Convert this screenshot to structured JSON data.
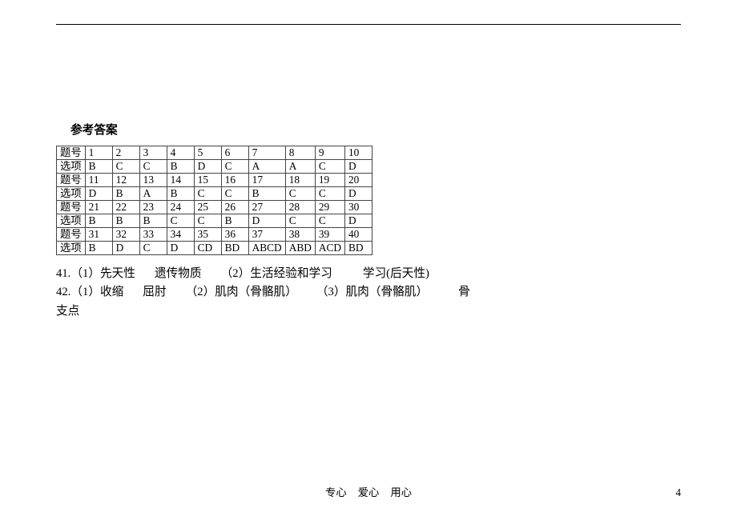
{
  "font_size_pt": 11,
  "table_font_size_pt": 10,
  "heading": "参考答案",
  "row_label_q": "题号",
  "row_label_a": "选项",
  "table_rows": [
    {
      "label": "题号",
      "vals": [
        "1",
        "2",
        "3",
        "4",
        "5",
        "6",
        "7",
        "8",
        "9",
        "10"
      ]
    },
    {
      "label": "选项",
      "vals": [
        "B",
        "C",
        "C",
        "B",
        "D",
        "C",
        "A",
        "A",
        "C",
        "D"
      ]
    },
    {
      "label": "题号",
      "vals": [
        "11",
        "12",
        "13",
        "14",
        "15",
        "16",
        "17",
        "18",
        "19",
        "20"
      ]
    },
    {
      "label": "选项",
      "vals": [
        "D",
        "B",
        "A",
        "B",
        "C",
        "C",
        "B",
        "C",
        "C",
        "D"
      ]
    },
    {
      "label": "题号",
      "vals": [
        "21",
        "22",
        "23",
        "24",
        "25",
        "26",
        "27",
        "28",
        "29",
        "30"
      ]
    },
    {
      "label": "选项",
      "vals": [
        "B",
        "B",
        "B",
        "C",
        "C",
        "B",
        "D",
        "C",
        "C",
        "D"
      ]
    },
    {
      "label": "题号",
      "vals": [
        "31",
        "32",
        "33",
        "34",
        "35",
        "36",
        "37",
        "38",
        "39",
        "40"
      ]
    },
    {
      "label": "选项",
      "vals": [
        "B",
        "D",
        "C",
        "D",
        "CD",
        "BD",
        "ABCD",
        "ABD",
        "ACD",
        "BD"
      ]
    }
  ],
  "answers": {
    "q41": {
      "num": "41.",
      "p1": "（1）先天性",
      "p1b": "遗传物质",
      "p2": "（2）生活经验和学习",
      "p3": "学习(后天性)"
    },
    "q42": {
      "num": "42.",
      "p1": "（1）收缩",
      "p1b": "屈肘",
      "p2": "（2）肌肉（骨骼肌）",
      "p3": "（3）肌肉（骨骼肌）",
      "p4": "骨",
      "line2": "支点"
    }
  },
  "footer": {
    "w1": "专心",
    "w2": "爱心",
    "w3": "用心"
  },
  "page_number": "4",
  "colors": {
    "text": "#000000",
    "border": "#444444",
    "bg": "#ffffff"
  }
}
